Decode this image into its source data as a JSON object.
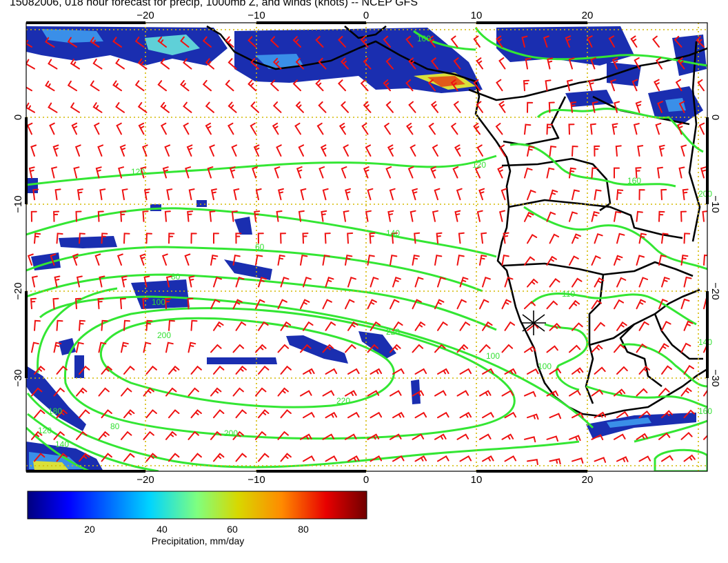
{
  "title": "15082006, 018 hour forecast for precip, 1000mb Z, and winds (knots) -- NCEP GFS",
  "map": {
    "lon_ticks": [
      "−20",
      "−10",
      "0",
      "10",
      "20"
    ],
    "lat_ticks": [
      "0",
      "−10",
      "−20",
      "−30"
    ],
    "contour_labels": [
      "100",
      "120",
      "120",
      "140",
      "60",
      "80",
      "100",
      "200",
      "220",
      "220",
      "200",
      "180",
      "80",
      "120",
      "140",
      "160",
      "100",
      "110",
      "100",
      "140",
      "160",
      "200"
    ],
    "colors": {
      "contour": "#33e633",
      "barb": "#ee1111",
      "coast": "#000000",
      "grid": "#d4b800"
    },
    "marker": "asterisk"
  },
  "colorbar": {
    "tick_labels": [
      "20",
      "40",
      "60",
      "80"
    ],
    "label": "Precipitation, mm/day"
  }
}
